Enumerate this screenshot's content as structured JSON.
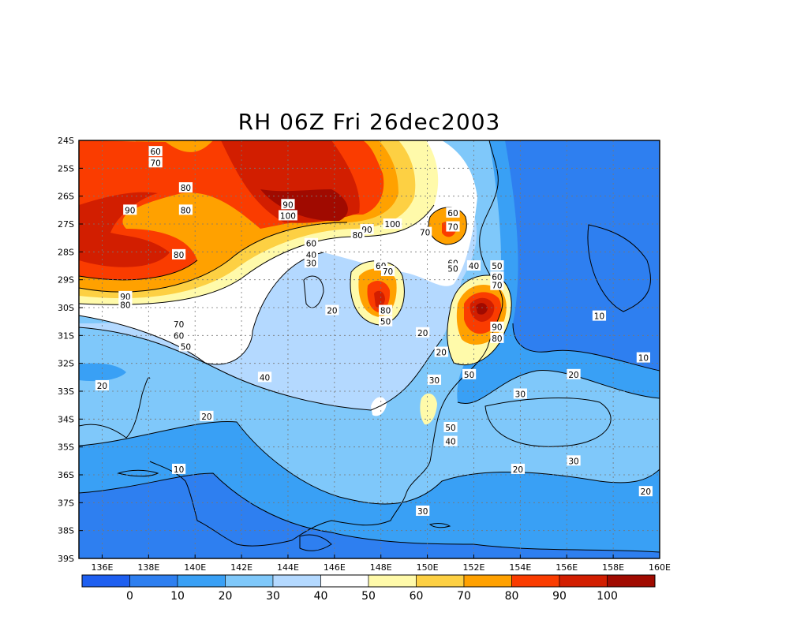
{
  "chart_data": {
    "type": "heatmap",
    "title": "RH 06Z Fri 26dec2003",
    "x_ticks": [
      "136E",
      "138E",
      "140E",
      "142E",
      "144E",
      "146E",
      "148E",
      "150E",
      "152E",
      "154E",
      "156E",
      "158E",
      "160E"
    ],
    "y_ticks": [
      "24S",
      "25S",
      "26S",
      "27S",
      "28S",
      "29S",
      "30S",
      "31S",
      "32S",
      "33S",
      "34S",
      "35S",
      "36S",
      "37S",
      "38S",
      "39S"
    ],
    "xlim": [
      135,
      160
    ],
    "ylim": [
      -39,
      -24
    ],
    "grid": true,
    "colorbar": {
      "labels": [
        "0",
        "10",
        "20",
        "30",
        "40",
        "50",
        "60",
        "70",
        "80",
        "90",
        "100"
      ],
      "colors": [
        "#1e5ff0",
        "#2e7ff0",
        "#39a0f5",
        "#7fc8fa",
        "#b4d9ff",
        "#ffffff",
        "#fffaaa",
        "#fdd043",
        "#ffa100",
        "#fa3c00",
        "#d21e00",
        "#a00a00"
      ]
    },
    "contour_labels": [
      {
        "text": "60",
        "lon": 138.3,
        "lat": -24.4
      },
      {
        "text": "70",
        "lon": 138.3,
        "lat": -24.8
      },
      {
        "text": "80",
        "lon": 139.6,
        "lat": -25.7
      },
      {
        "text": "90",
        "lon": 137.2,
        "lat": -26.5
      },
      {
        "text": "80",
        "lon": 139.6,
        "lat": -26.5
      },
      {
        "text": "90",
        "lon": 144.0,
        "lat": -26.3
      },
      {
        "text": "100",
        "lon": 144.0,
        "lat": -26.7
      },
      {
        "text": "100",
        "lon": 148.5,
        "lat": -27.0
      },
      {
        "text": "90",
        "lon": 147.4,
        "lat": -27.2
      },
      {
        "text": "80",
        "lon": 147.0,
        "lat": -27.4
      },
      {
        "text": "60",
        "lon": 145.0,
        "lat": -27.7
      },
      {
        "text": "40",
        "lon": 145.0,
        "lat": -28.1
      },
      {
        "text": "30",
        "lon": 145.0,
        "lat": -28.4
      },
      {
        "text": "80",
        "lon": 139.3,
        "lat": -28.1
      },
      {
        "text": "60",
        "lon": 151.1,
        "lat": -26.6
      },
      {
        "text": "70",
        "lon": 151.1,
        "lat": -27.1
      },
      {
        "text": "70",
        "lon": 149.9,
        "lat": -27.3
      },
      {
        "text": "60",
        "lon": 151.1,
        "lat": -28.4
      },
      {
        "text": "50",
        "lon": 151.1,
        "lat": -28.6
      },
      {
        "text": "40",
        "lon": 152.0,
        "lat": -28.5
      },
      {
        "text": "50",
        "lon": 153.0,
        "lat": -28.5
      },
      {
        "text": "60",
        "lon": 153.0,
        "lat": -28.9
      },
      {
        "text": "70",
        "lon": 153.0,
        "lat": -29.2
      },
      {
        "text": "60",
        "lon": 148.0,
        "lat": -28.5
      },
      {
        "text": "70",
        "lon": 148.3,
        "lat": -28.7
      },
      {
        "text": "80",
        "lon": 148.2,
        "lat": -30.1
      },
      {
        "text": "50",
        "lon": 148.2,
        "lat": -30.5
      },
      {
        "text": "90",
        "lon": 153.0,
        "lat": -30.7
      },
      {
        "text": "80",
        "lon": 153.0,
        "lat": -31.1
      },
      {
        "text": "10",
        "lon": 157.4,
        "lat": -30.3
      },
      {
        "text": "90",
        "lon": 137.0,
        "lat": -29.6
      },
      {
        "text": "80",
        "lon": 137.0,
        "lat": -29.9
      },
      {
        "text": "70",
        "lon": 139.3,
        "lat": -30.6
      },
      {
        "text": "60",
        "lon": 139.3,
        "lat": -31.0
      },
      {
        "text": "50",
        "lon": 139.6,
        "lat": -31.4
      },
      {
        "text": "20",
        "lon": 145.9,
        "lat": -30.1
      },
      {
        "text": "20",
        "lon": 149.8,
        "lat": -30.9
      },
      {
        "text": "20",
        "lon": 150.6,
        "lat": -31.6
      },
      {
        "text": "10",
        "lon": 159.3,
        "lat": -31.8
      },
      {
        "text": "40",
        "lon": 143.0,
        "lat": -32.5
      },
      {
        "text": "30",
        "lon": 150.3,
        "lat": -32.6
      },
      {
        "text": "50",
        "lon": 151.8,
        "lat": -32.4
      },
      {
        "text": "20",
        "lon": 156.3,
        "lat": -32.4
      },
      {
        "text": "20",
        "lon": 136.0,
        "lat": -32.8
      },
      {
        "text": "30",
        "lon": 154.0,
        "lat": -33.1
      },
      {
        "text": "20",
        "lon": 140.5,
        "lat": -33.9
      },
      {
        "text": "50",
        "lon": 151.0,
        "lat": -34.3
      },
      {
        "text": "40",
        "lon": 151.0,
        "lat": -34.8
      },
      {
        "text": "30",
        "lon": 156.3,
        "lat": -35.5
      },
      {
        "text": "10",
        "lon": 139.3,
        "lat": -35.8
      },
      {
        "text": "20",
        "lon": 153.9,
        "lat": -35.8
      },
      {
        "text": "20",
        "lon": 159.4,
        "lat": -36.6
      },
      {
        "text": "30",
        "lon": 149.8,
        "lat": -37.3
      }
    ]
  }
}
